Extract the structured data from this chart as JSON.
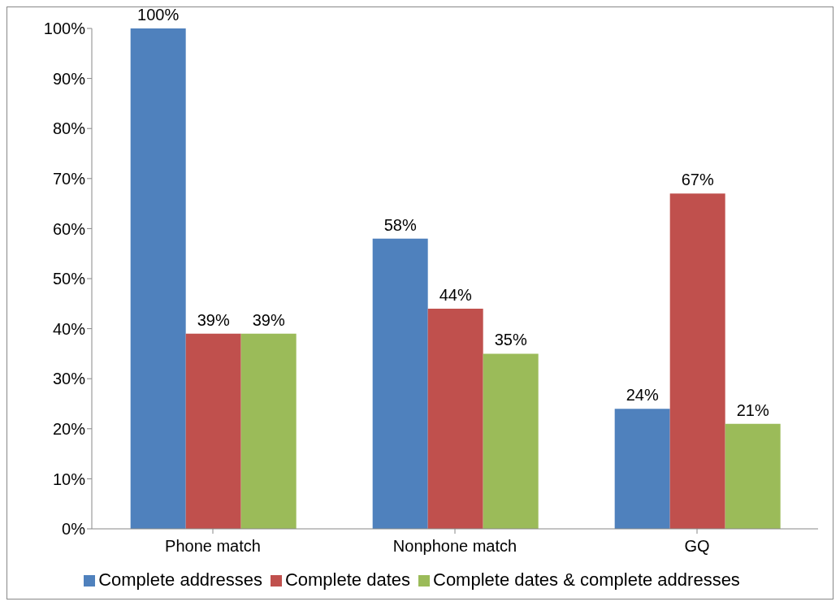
{
  "chart_data": {
    "type": "bar",
    "categories": [
      "Phone match",
      "Nonphone match",
      "GQ"
    ],
    "series": [
      {
        "name": "Complete addresses",
        "color": "#4f81bd",
        "values": [
          100,
          58,
          24
        ],
        "value_labels": [
          "100%",
          "58%",
          "24%"
        ]
      },
      {
        "name": "Complete dates",
        "color": "#c0504d",
        "values": [
          39,
          44,
          67
        ],
        "value_labels": [
          "39%",
          "44%",
          "67%"
        ]
      },
      {
        "name": "Complete dates & complete addresses",
        "color": "#9bbb59",
        "values": [
          39,
          35,
          21
        ],
        "value_labels": [
          "39%",
          "35%",
          "21%"
        ]
      }
    ],
    "ylim": [
      0,
      100
    ],
    "yticks": [
      {
        "value": 0,
        "label": "0%"
      },
      {
        "value": 10,
        "label": "10%"
      },
      {
        "value": 20,
        "label": "20%"
      },
      {
        "value": 30,
        "label": "30%"
      },
      {
        "value": 40,
        "label": "40%"
      },
      {
        "value": 50,
        "label": "50%"
      },
      {
        "value": 60,
        "label": "60%"
      },
      {
        "value": 70,
        "label": "70%"
      },
      {
        "value": 80,
        "label": "80%"
      },
      {
        "value": 90,
        "label": "90%"
      },
      {
        "value": 100,
        "label": "100%"
      }
    ],
    "legend": "bottom"
  }
}
